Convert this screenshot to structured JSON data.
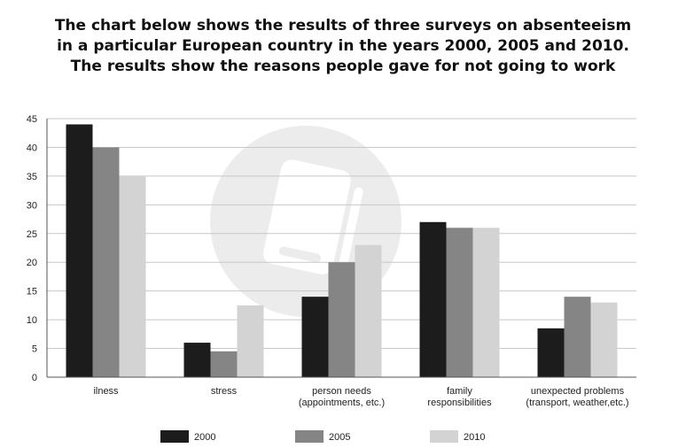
{
  "chart_data": {
    "type": "bar",
    "title_lines": [
      "The chart below shows the results of three surveys on absenteeism",
      "in a particular European country in the years 2000, 2005 and 2010.",
      "The results show the reasons people gave for not going to work"
    ],
    "categories": [
      [
        "ilness"
      ],
      [
        "stress"
      ],
      [
        "person needs",
        "(appointments, etc.)"
      ],
      [
        "family",
        "responsibilities"
      ],
      [
        "unexpected problems",
        "(transport, weather,etc.)"
      ]
    ],
    "series": [
      {
        "name": "2000",
        "color": "#1c1c1c",
        "values": [
          44,
          6,
          14,
          27,
          8.5
        ]
      },
      {
        "name": "2005",
        "color": "#858585",
        "values": [
          40,
          4.5,
          20,
          26,
          14
        ]
      },
      {
        "name": "2010",
        "color": "#d3d3d3",
        "values": [
          35,
          12.5,
          23,
          26,
          13
        ]
      }
    ],
    "ylim": [
      0,
      45
    ],
    "yticks": [
      0,
      5,
      10,
      15,
      20,
      25,
      30,
      35,
      40,
      45
    ],
    "grid": true,
    "legend_position": "bottom"
  }
}
